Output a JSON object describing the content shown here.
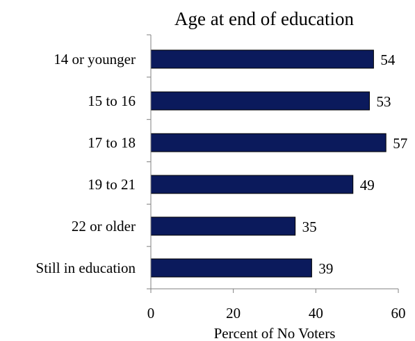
{
  "chart_data": {
    "type": "bar",
    "orientation": "horizontal",
    "title": "Age at end of education",
    "xlabel": "Percent of No Voters",
    "ylabel": "",
    "categories": [
      "14 or younger",
      "15 to 16",
      "17 to 18",
      "19 to 21",
      "22 or older",
      "Still in education"
    ],
    "values": [
      54,
      53,
      57,
      49,
      35,
      39
    ],
    "xlim": [
      0,
      60
    ],
    "xticks": [
      0,
      20,
      40,
      60
    ],
    "grid": false,
    "bar_color": "#0b1a5c",
    "bar_edge_color": "#000000"
  }
}
